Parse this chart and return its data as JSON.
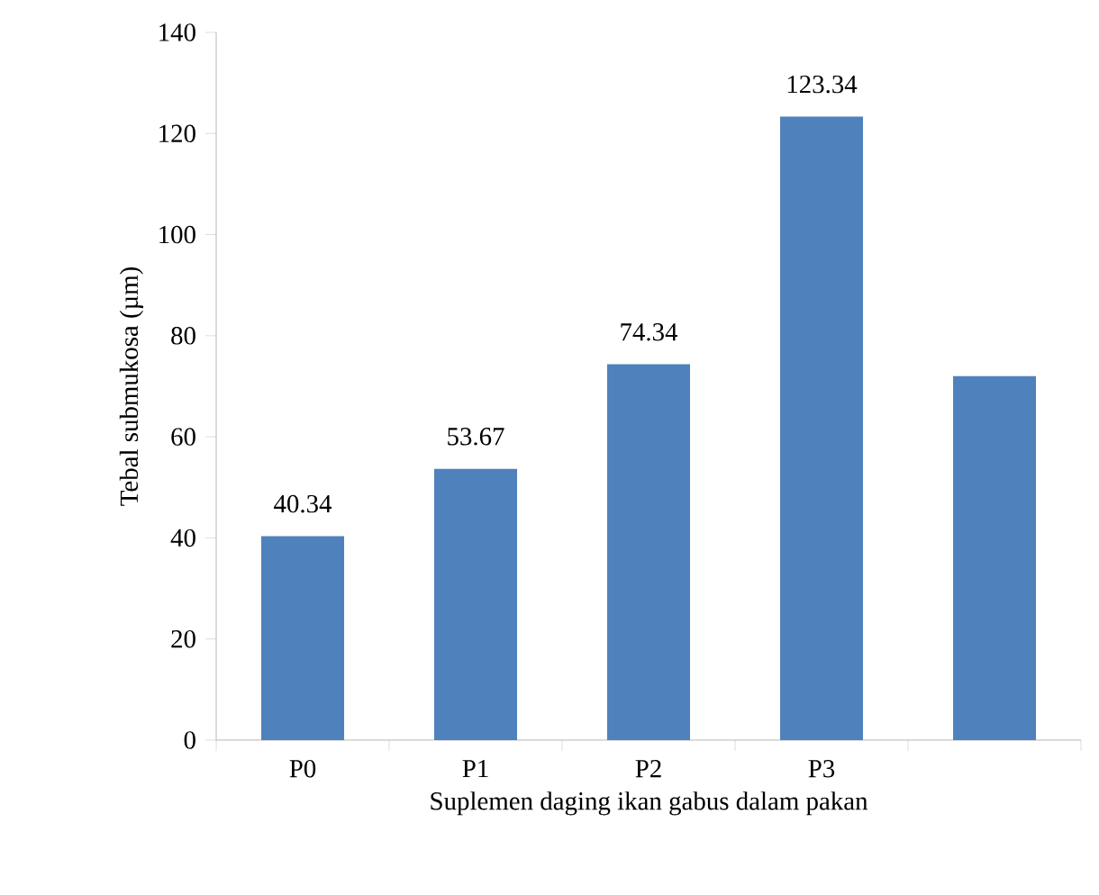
{
  "chart_data": {
    "type": "bar",
    "xlabel": "Suplemen daging ikan gabus  dalam pakan",
    "ylabel": "Tebal submukosa (µm)",
    "categories": [
      "P0",
      "P1",
      "P2",
      "P3",
      null
    ],
    "values": [
      40.34,
      53.67,
      74.34,
      123.34,
      72
    ],
    "value_labels": [
      "40.34",
      "53.67",
      "74.34",
      "123.34",
      null
    ],
    "color": "#4f81bd",
    "ylim": [
      0,
      140
    ],
    "yticks": [
      0,
      20,
      40,
      60,
      80,
      100,
      120,
      140
    ]
  }
}
